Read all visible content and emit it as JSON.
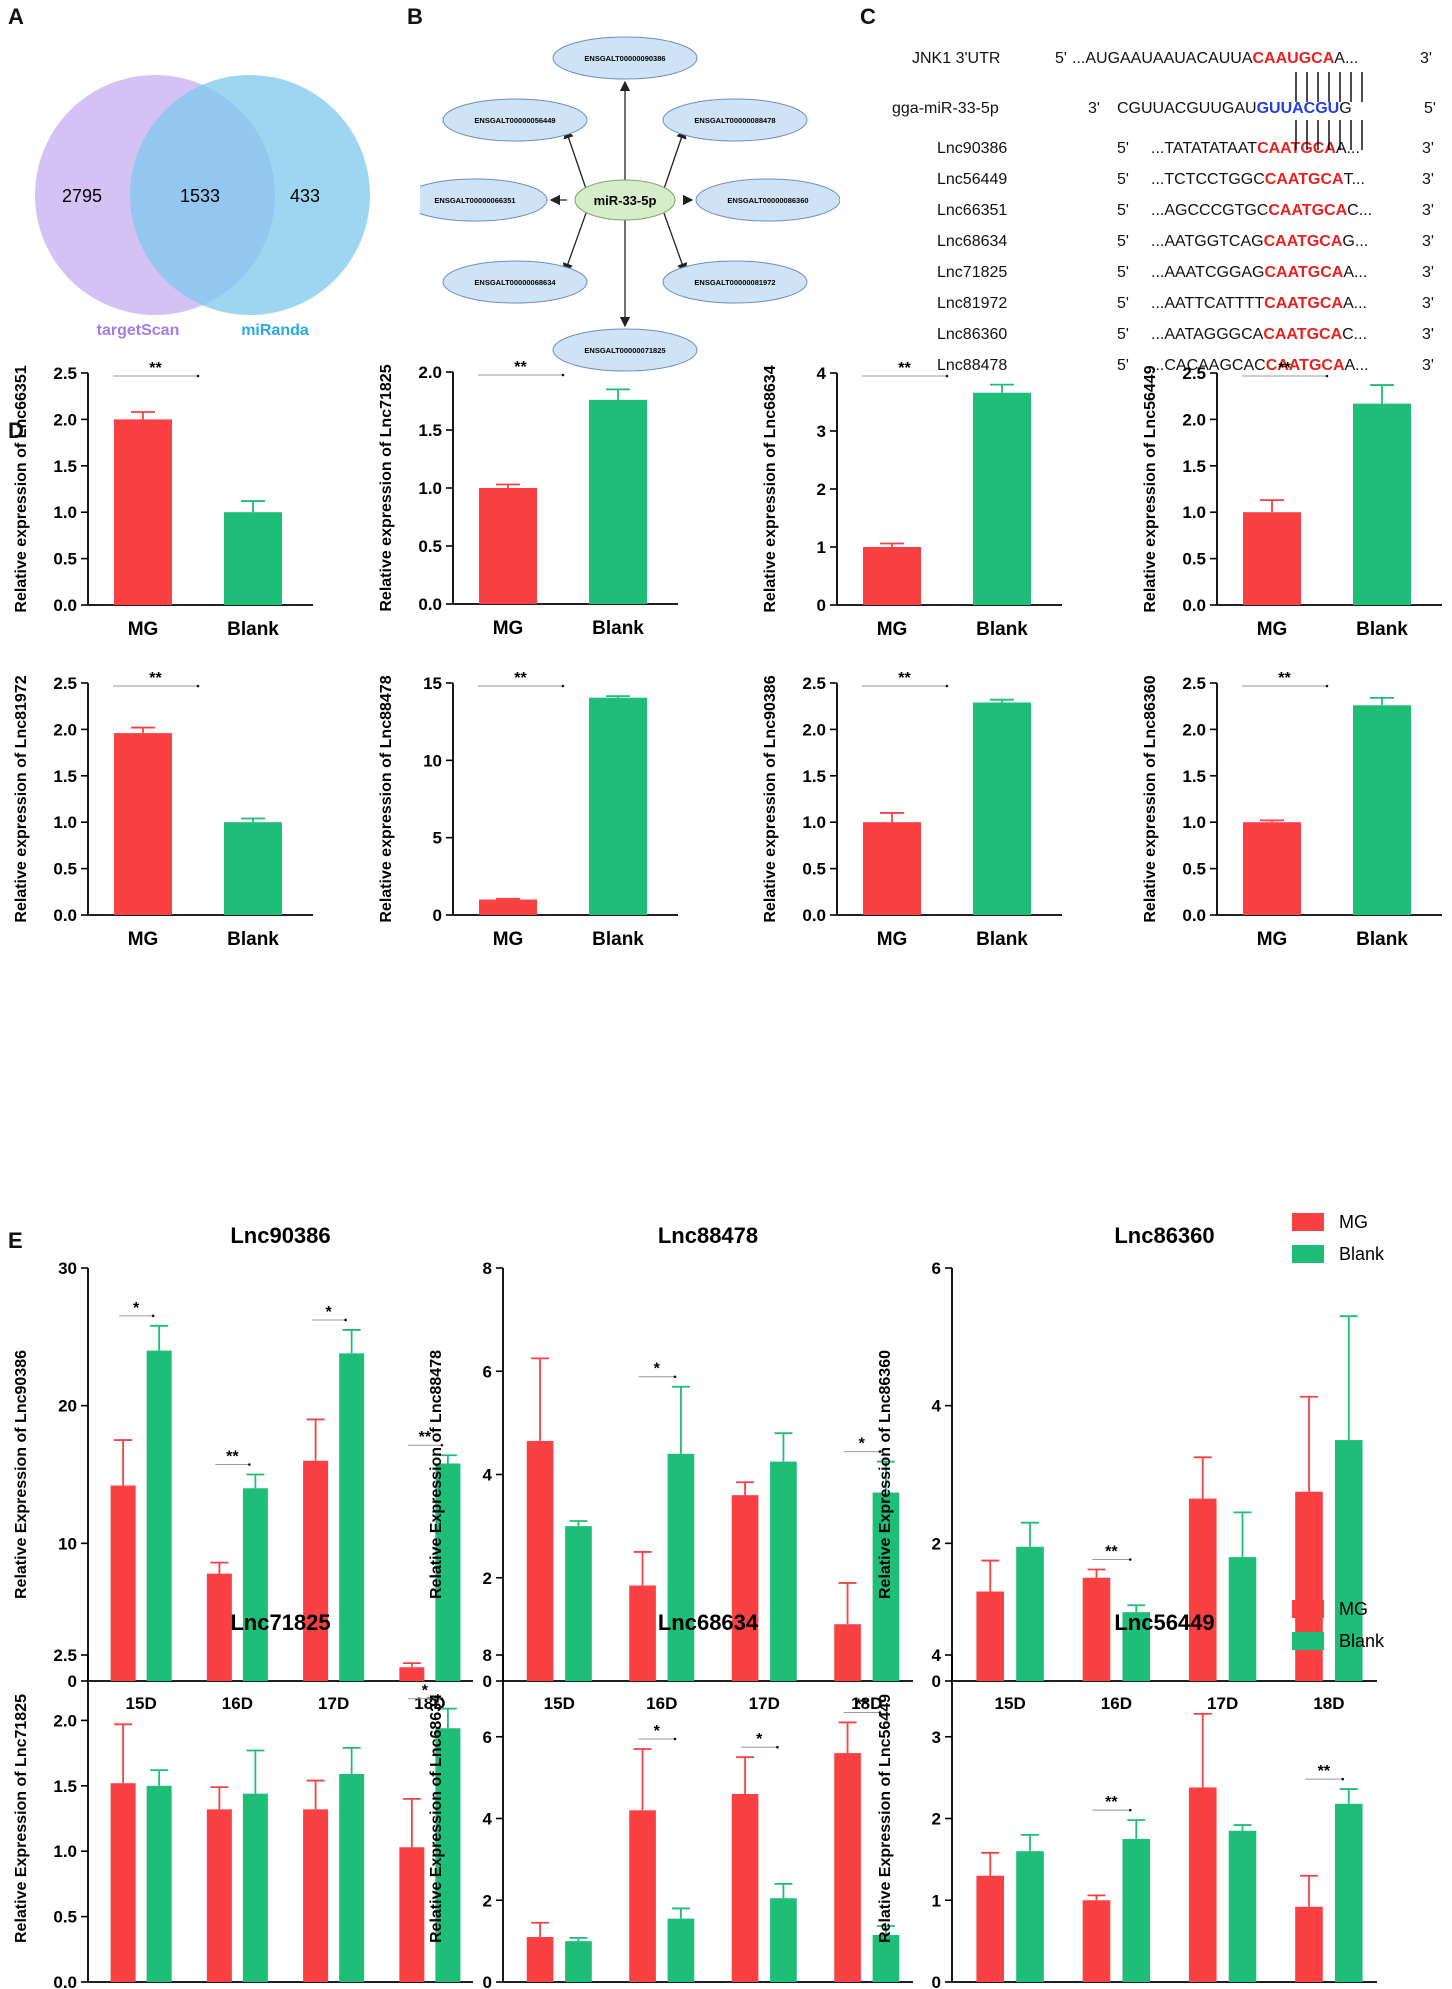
{
  "panels": {
    "a": "A",
    "b": "B",
    "c": "C",
    "d": "D",
    "e": "E"
  },
  "venn": {
    "left_only": "2795",
    "overlap": "1533",
    "right_only": "433",
    "left_label": "targetScan",
    "right_label": "miRanda",
    "left_color": "#cdb7f3",
    "right_color": "#7ec8ee"
  },
  "network": {
    "center": "miR-33-5p",
    "nodes": [
      "ENSGALT00000090386",
      "ENSGALT00000088478",
      "ENSGALT00000086360",
      "ENSGALT00000081972",
      "ENSGALT00000071825",
      "ENSGALT00000068634",
      "ENSGALT00000066351",
      "ENSGALT00000056449"
    ]
  },
  "alignment": {
    "target": {
      "name": "JNK1 3'UTR",
      "p5": "5'",
      "pre": "...AUGAAUAAUACAUUA",
      "hl": "CAAUGCA",
      "post": "A...",
      "p3": "3'"
    },
    "mirna": {
      "name": "gga-miR-33-5p",
      "p3": "3'",
      "pre": "CGUUACGUUGAU",
      "hl": "GUUACGU",
      "post": "G",
      "p5": "5'"
    },
    "lncs": [
      {
        "name": "Lnc90386",
        "p5": "5'",
        "pre": "...TATATATAAT",
        "hl": "CAATGCA",
        "post": "A...",
        "p3": "3'"
      },
      {
        "name": "Lnc56449",
        "p5": "5'",
        "pre": "...TCTCCTGGC",
        "hl": "CAATGCA",
        "post": "T...",
        "p3": "3'"
      },
      {
        "name": "Lnc66351",
        "p5": "5'",
        "pre": "...AGCCCGTGC",
        "hl": "CAATGCA",
        "post": "C...",
        "p3": "3'"
      },
      {
        "name": "Lnc68634",
        "p5": "5'",
        "pre": "...AATGGTCAG",
        "hl": "CAATGCA",
        "post": "G...",
        "p3": "3'"
      },
      {
        "name": "Lnc71825",
        "p5": "5'",
        "pre": "...AAATCGGAG",
        "hl": "CAATGCA",
        "post": "A...",
        "p3": "3'"
      },
      {
        "name": "Lnc81972",
        "p5": "5'",
        "pre": "...AATTCATTTT",
        "hl": "CAATGCA",
        "post": "A...",
        "p3": "3'"
      },
      {
        "name": "Lnc86360",
        "p5": "5'",
        "pre": "...AATAGGGCA",
        "hl": "CAATGCA",
        "post": "C...",
        "p3": "3'"
      },
      {
        "name": "Lnc88478",
        "p5": "5'",
        "pre": "...CACAAGCAC",
        "hl": "CAATGCA",
        "post": "A...",
        "p3": "3'"
      }
    ]
  },
  "colors": {
    "mg": "#f94144",
    "blank": "#1ebd78"
  },
  "chart_data": [
    {
      "type": "bar",
      "panel": "D",
      "ylabel": "Relative expression of  Lnc66351",
      "categories": [
        "MG",
        "Blank"
      ],
      "values": [
        2.0,
        1.0
      ],
      "errors": [
        0.08,
        0.12
      ],
      "ylim": [
        0,
        2.5
      ],
      "ticks": [
        "0.0",
        "0.5",
        "1.0",
        "1.5",
        "2.0",
        "2.5"
      ],
      "sig": "**"
    },
    {
      "type": "bar",
      "panel": "D",
      "ylabel": "Relative expression of  Lnc71825",
      "categories": [
        "MG",
        "Blank"
      ],
      "values": [
        1.0,
        1.76
      ],
      "errors": [
        0.03,
        0.09
      ],
      "ylim": [
        0,
        2.0
      ],
      "ticks": [
        "0.0",
        "0.5",
        "1.0",
        "1.5",
        "2.0"
      ],
      "sig": "**"
    },
    {
      "type": "bar",
      "panel": "D",
      "ylabel": "Relative expression of  Lnc68634",
      "categories": [
        "MG",
        "Blank"
      ],
      "values": [
        1.0,
        3.66
      ],
      "errors": [
        0.06,
        0.14
      ],
      "ylim": [
        0,
        4
      ],
      "ticks": [
        "0",
        "1",
        "2",
        "3",
        "4"
      ],
      "sig": "**"
    },
    {
      "type": "bar",
      "panel": "D",
      "ylabel": "Relative expression of  Lnc56449",
      "categories": [
        "MG",
        "Blank"
      ],
      "values": [
        1.0,
        2.17
      ],
      "errors": [
        0.13,
        0.2
      ],
      "ylim": [
        0,
        2.5
      ],
      "ticks": [
        "0.0",
        "0.5",
        "1.0",
        "1.5",
        "2.0",
        "2.5"
      ],
      "sig": "**"
    },
    {
      "type": "bar",
      "panel": "D",
      "ylabel": "Relative expression of  Lnc81972",
      "categories": [
        "MG",
        "Blank"
      ],
      "values": [
        1.96,
        1.0
      ],
      "errors": [
        0.06,
        0.04
      ],
      "ylim": [
        0,
        2.5
      ],
      "ticks": [
        "0.0",
        "0.5",
        "1.0",
        "1.5",
        "2.0",
        "2.5"
      ],
      "sig": "**"
    },
    {
      "type": "bar",
      "panel": "D",
      "ylabel": "Relative expression of  Lnc88478",
      "categories": [
        "MG",
        "Blank"
      ],
      "values": [
        1.0,
        14.05
      ],
      "errors": [
        0.05,
        0.1
      ],
      "ylim": [
        0,
        15
      ],
      "ticks": [
        "0",
        "5",
        "10",
        "15"
      ],
      "sig": "**"
    },
    {
      "type": "bar",
      "panel": "D",
      "ylabel": "Relative expression of  Lnc90386",
      "categories": [
        "MG",
        "Blank"
      ],
      "values": [
        1.0,
        2.29
      ],
      "errors": [
        0.1,
        0.03
      ],
      "ylim": [
        0,
        2.5
      ],
      "ticks": [
        "0.0",
        "0.5",
        "1.0",
        "1.5",
        "2.0",
        "2.5"
      ],
      "sig": "**"
    },
    {
      "type": "bar",
      "panel": "D",
      "ylabel": "Relative expression of  Lnc86360",
      "categories": [
        "MG",
        "Blank"
      ],
      "values": [
        1.0,
        2.26
      ],
      "errors": [
        0.02,
        0.08
      ],
      "ylim": [
        0,
        2.5
      ],
      "ticks": [
        "0.0",
        "0.5",
        "1.0",
        "1.5",
        "2.0",
        "2.5"
      ],
      "sig": "**"
    },
    {
      "type": "bar",
      "panel": "E",
      "title": "Lnc90386",
      "ylabel": "Relative Expression of  Lnc90386",
      "categories": [
        "15D",
        "16D",
        "17D",
        "18D"
      ],
      "series": [
        {
          "name": "MG",
          "values": [
            14.2,
            7.8,
            16.0,
            1.0
          ],
          "errors": [
            3.3,
            0.8,
            3.0,
            0.3
          ]
        },
        {
          "name": "Blank",
          "values": [
            24.0,
            14.0,
            23.8,
            15.8
          ],
          "errors": [
            1.8,
            1.0,
            1.7,
            0.6
          ]
        }
      ],
      "ylim": [
        0,
        30
      ],
      "ticks": [
        "0",
        "10",
        "20",
        "30"
      ],
      "sig": [
        "*",
        "**",
        "*",
        "**"
      ]
    },
    {
      "type": "bar",
      "panel": "E",
      "title": "Lnc88478",
      "ylabel": "Relative Expression of  Lnc88478",
      "categories": [
        "15D",
        "16D",
        "17D",
        "18D"
      ],
      "series": [
        {
          "name": "MG",
          "values": [
            4.65,
            1.85,
            3.6,
            1.1
          ],
          "errors": [
            1.6,
            0.65,
            0.25,
            0.8
          ]
        },
        {
          "name": "Blank",
          "values": [
            3.0,
            4.4,
            4.25,
            3.65
          ],
          "errors": [
            0.1,
            1.3,
            0.55,
            0.6
          ]
        }
      ],
      "ylim": [
        0,
        8
      ],
      "ticks": [
        "0",
        "2",
        "4",
        "6",
        "8"
      ],
      "sig": [
        "",
        "*",
        "",
        "*"
      ]
    },
    {
      "type": "bar",
      "panel": "E",
      "title": "Lnc86360",
      "ylabel": "Relative Expression of  Lnc86360",
      "categories": [
        "15D",
        "16D",
        "17D",
        "18D"
      ],
      "series": [
        {
          "name": "MG",
          "values": [
            1.3,
            1.5,
            2.65,
            2.75
          ],
          "errors": [
            0.45,
            0.12,
            0.6,
            1.38
          ]
        },
        {
          "name": "Blank",
          "values": [
            1.95,
            1.0,
            1.8,
            3.5
          ],
          "errors": [
            0.35,
            0.1,
            0.65,
            1.8
          ]
        }
      ],
      "ylim": [
        0,
        6
      ],
      "ticks": [
        "0",
        "2",
        "4",
        "6"
      ],
      "sig": [
        "",
        "**",
        "",
        ""
      ]
    },
    {
      "type": "bar",
      "panel": "E",
      "title": "Lnc71825",
      "ylabel": "Relative Expression of  Lnc71825",
      "categories": [
        "15D",
        "16D",
        "17D",
        "18D"
      ],
      "series": [
        {
          "name": "MG",
          "values": [
            1.52,
            1.32,
            1.32,
            1.03
          ],
          "errors": [
            0.45,
            0.17,
            0.22,
            0.37
          ]
        },
        {
          "name": "Blank",
          "values": [
            1.5,
            1.44,
            1.59,
            1.94
          ],
          "errors": [
            0.12,
            0.33,
            0.2,
            0.15
          ]
        }
      ],
      "ylim": [
        0,
        2.5
      ],
      "ticks": [
        "0.0",
        "0.5",
        "1.0",
        "1.5",
        "2.0",
        "2.5"
      ],
      "sig": [
        "",
        "",
        "",
        "*"
      ]
    },
    {
      "type": "bar",
      "panel": "E",
      "title": "Lnc68634",
      "ylabel": "Relative Expression of  Lnc68634",
      "categories": [
        "15D",
        "16D",
        "17D",
        "18D"
      ],
      "series": [
        {
          "name": "MG",
          "values": [
            1.1,
            4.2,
            4.6,
            5.6
          ],
          "errors": [
            0.35,
            1.5,
            0.9,
            0.75
          ]
        },
        {
          "name": "Blank",
          "values": [
            1.0,
            1.55,
            2.05,
            1.15
          ],
          "errors": [
            0.08,
            0.25,
            0.35,
            0.22
          ]
        }
      ],
      "ylim": [
        0,
        8
      ],
      "ticks": [
        "0",
        "2",
        "4",
        "6",
        "8"
      ],
      "sig": [
        "",
        "*",
        "*",
        "**"
      ]
    },
    {
      "type": "bar",
      "panel": "E",
      "title": "Lnc56449",
      "ylabel": "Relative Expression of  Lnc56449",
      "categories": [
        "15D",
        "16D",
        "17D",
        "18D"
      ],
      "series": [
        {
          "name": "MG",
          "values": [
            1.3,
            1.0,
            2.38,
            0.92
          ],
          "errors": [
            0.28,
            0.06,
            0.9,
            0.38
          ]
        },
        {
          "name": "Blank",
          "values": [
            1.6,
            1.75,
            1.85,
            2.18
          ],
          "errors": [
            0.2,
            0.23,
            0.07,
            0.18
          ]
        }
      ],
      "ylim": [
        0,
        4
      ],
      "ticks": [
        "0",
        "1",
        "2",
        "3",
        "4"
      ],
      "sig": [
        "",
        "**",
        "",
        "**"
      ]
    }
  ],
  "legend": {
    "mg": "MG",
    "blank": "Blank"
  }
}
